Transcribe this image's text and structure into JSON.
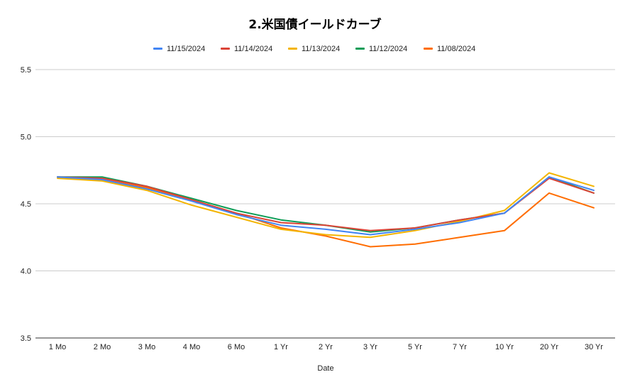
{
  "chart_data": {
    "type": "line",
    "title": "2.米国債イールドカーブ",
    "xlabel": "Date",
    "ylabel": "",
    "ylim": [
      3.5,
      5.5
    ],
    "yticks": [
      "3.5",
      "4.0",
      "4.5",
      "5.0",
      "5.5"
    ],
    "grid": true,
    "legend_position": "top",
    "categories": [
      "1 Mo",
      "2 Mo",
      "3 Mo",
      "4 Mo",
      "6 Mo",
      "1 Yr",
      "2 Yr",
      "3 Yr",
      "5 Yr",
      "7 Yr",
      "10 Yr",
      "20 Yr",
      "30 Yr"
    ],
    "series": [
      {
        "name": "11/15/2024",
        "color": "#4285f4",
        "values": [
          4.7,
          4.68,
          4.61,
          4.52,
          4.42,
          4.34,
          4.31,
          4.27,
          4.31,
          4.36,
          4.43,
          4.7,
          4.6
        ]
      },
      {
        "name": "11/14/2024",
        "color": "#db4437",
        "values": [
          4.7,
          4.69,
          4.63,
          4.53,
          4.43,
          4.36,
          4.34,
          4.3,
          4.32,
          4.38,
          4.43,
          4.69,
          4.58
        ]
      },
      {
        "name": "11/13/2024",
        "color": "#f4b400",
        "values": [
          4.69,
          4.67,
          4.6,
          4.49,
          4.4,
          4.31,
          4.27,
          4.25,
          4.3,
          4.37,
          4.45,
          4.73,
          4.63
        ]
      },
      {
        "name": "11/12/2024",
        "color": "#0f9d58",
        "values": [
          4.7,
          4.7,
          4.63,
          4.54,
          4.45,
          4.38,
          4.34,
          4.29,
          4.32,
          4.38,
          4.43,
          4.7,
          4.58
        ]
      },
      {
        "name": "11/08/2024",
        "color": "#ff6d00",
        "values": [
          4.7,
          4.68,
          4.62,
          4.53,
          4.43,
          4.32,
          4.26,
          4.18,
          4.2,
          4.25,
          4.3,
          4.58,
          4.47
        ]
      }
    ]
  }
}
